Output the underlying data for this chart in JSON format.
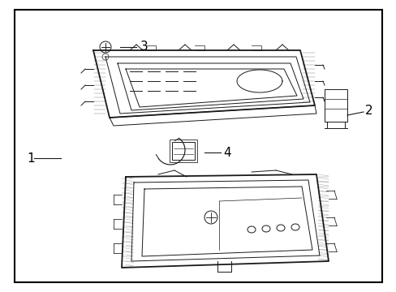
{
  "bg_color": "#ffffff",
  "border_color": "#000000",
  "line_color": "#1a1a1a",
  "label_color": "#000000",
  "lw_main": 1.3,
  "lw_thin": 0.7,
  "lw_hair": 0.4
}
